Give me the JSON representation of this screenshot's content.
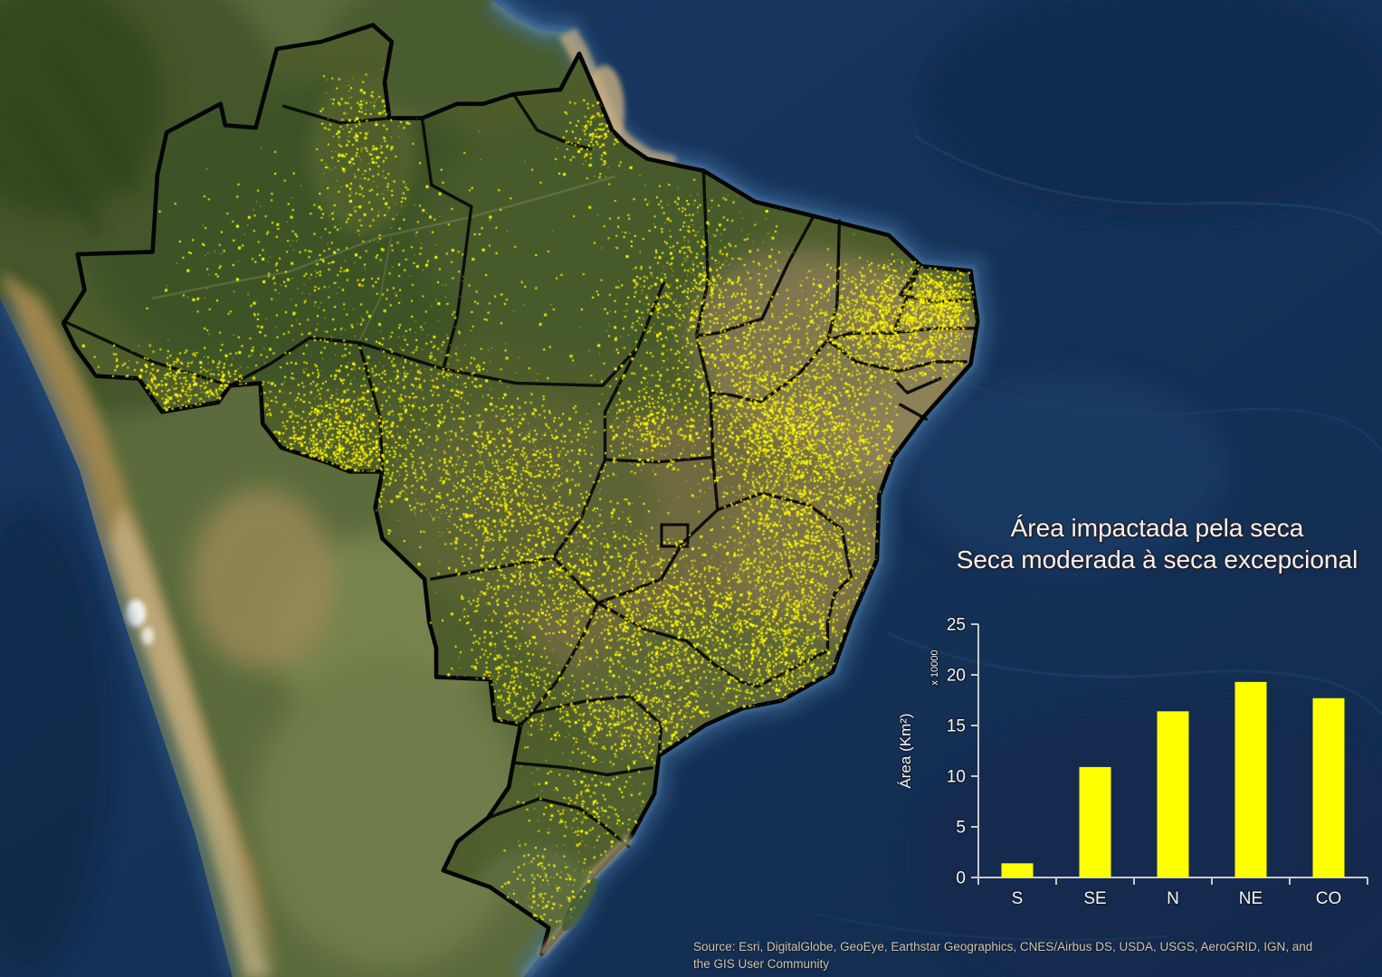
{
  "title": {
    "line1": "Área impactada pela seca",
    "line2": "Seca moderada à seca excepcional"
  },
  "chart_data": {
    "type": "bar",
    "categories": [
      "S",
      "SE",
      "N",
      "NE",
      "CO"
    ],
    "values": [
      1.4,
      10.9,
      16.4,
      19.3,
      17.7
    ],
    "title": "Área impactada pela seca — Seca moderada à seca excepcional",
    "xlabel": "",
    "ylabel": "Área (Km²)",
    "y_multiplier_note": "x 10000",
    "ylim": [
      0,
      25
    ],
    "yticks": [
      0,
      5,
      10,
      15,
      20,
      25
    ],
    "grid": false,
    "legend": "none",
    "bar_color": "#ffff00",
    "axis_color": "#c9c9c9",
    "text_color": "#f5f5f5"
  },
  "source": {
    "line1": "Source: Esri, DigitalGlobe, GeoEye, Earthstar Geographics, CNES/Airbus DS, USDA, USGS, AeroGRID, IGN, and",
    "line2": "the GIS User Community"
  },
  "map": {
    "dot_color_primary": "#ffff00",
    "dot_color_secondary": "#f2e800",
    "state_border_color": "#000000",
    "ocean_color": "#16335a",
    "dot_regions": [
      [
        "roraima",
        400,
        160,
        58,
        88,
        260
      ],
      [
        "amapa",
        652,
        150,
        40,
        55,
        140
      ],
      [
        "amazonas-sparse",
        360,
        300,
        215,
        125,
        430
      ],
      [
        "south-amazonas",
        450,
        420,
        155,
        60,
        380
      ],
      [
        "acre",
        200,
        432,
        118,
        55,
        620
      ],
      [
        "rondonia",
        378,
        495,
        92,
        72,
        950
      ],
      [
        "mato-grosso-north",
        560,
        520,
        125,
        88,
        780
      ],
      [
        "mato-grosso-center",
        612,
        632,
        132,
        92,
        820
      ],
      [
        "para-east",
        770,
        330,
        115,
        135,
        850
      ],
      [
        "para-southeast",
        720,
        470,
        65,
        60,
        320
      ],
      [
        "tocantins-maranhao",
        840,
        460,
        88,
        135,
        1050
      ],
      [
        "northeast-coast",
        985,
        355,
        108,
        78,
        1500
      ],
      [
        "northeast-tip",
        1040,
        332,
        38,
        48,
        420
      ],
      [
        "piaui-west-bahia",
        905,
        480,
        98,
        88,
        950
      ],
      [
        "bahia-central",
        895,
        600,
        108,
        108,
        1050
      ],
      [
        "goias-minas",
        760,
        690,
        142,
        108,
        1350
      ],
      [
        "minas-east",
        878,
        722,
        88,
        82,
        620
      ],
      [
        "sao-paulo",
        700,
        797,
        102,
        56,
        470
      ],
      [
        "mato-grosso-sul",
        560,
        755,
        78,
        78,
        360
      ],
      [
        "parana-santa-catarina",
        650,
        893,
        88,
        62,
        230
      ],
      [
        "rio-grande-do-sul",
        610,
        982,
        76,
        56,
        180
      ],
      [
        "brazil-wide-sparse",
        560,
        470,
        440,
        360,
        550
      ]
    ]
  }
}
